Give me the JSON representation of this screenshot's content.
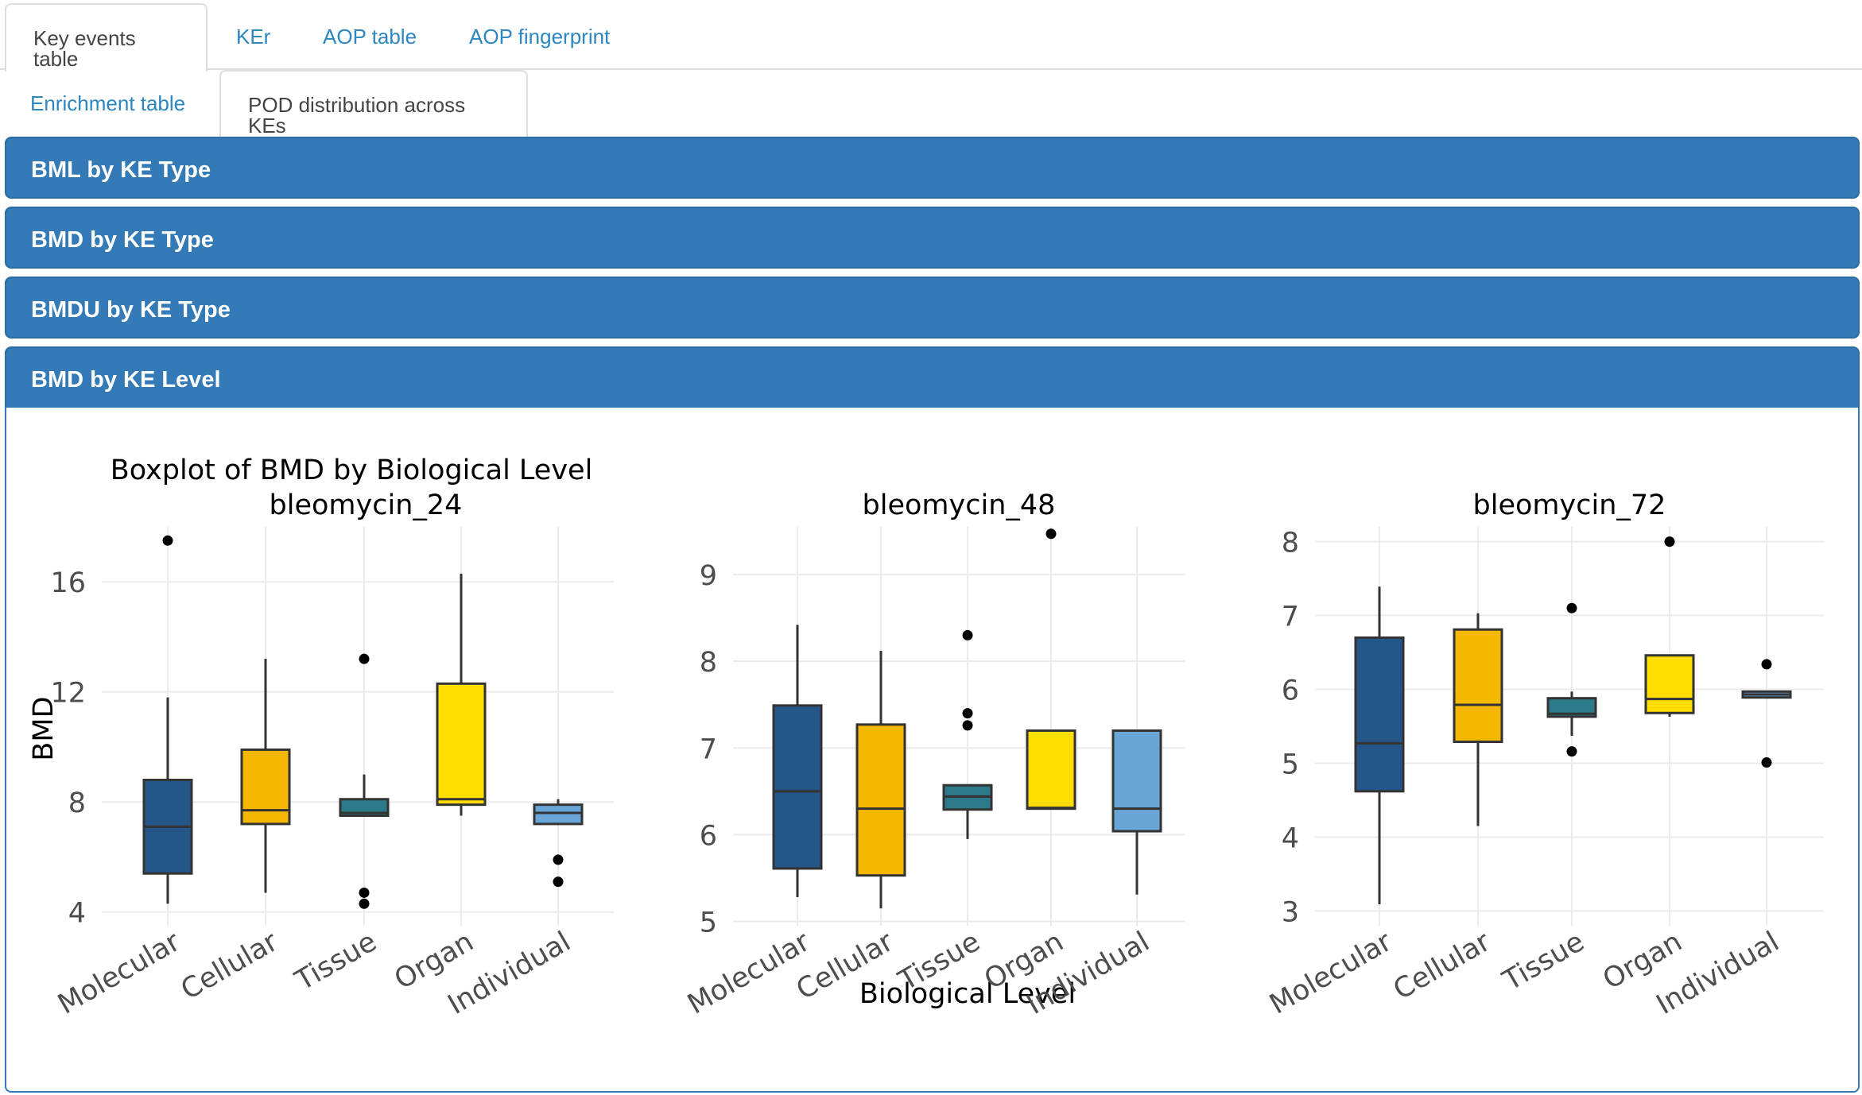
{
  "tabs_row1": [
    {
      "label": "Key events table",
      "active": true
    },
    {
      "label": "KEr",
      "active": false
    },
    {
      "label": "AOP table",
      "active": false
    },
    {
      "label": "AOP fingerprint",
      "active": false
    }
  ],
  "tabs_row2": [
    {
      "label": "Enrichment table",
      "active": false
    },
    {
      "label": "POD distribution across KEs",
      "active": true
    }
  ],
  "panels": [
    {
      "label": "BML by KE Type"
    },
    {
      "label": "BMD by KE Type"
    },
    {
      "label": "BMDU by KE Type"
    },
    {
      "label": "BMD by KE Level"
    }
  ],
  "chart_data": {
    "type": "boxplot",
    "title": "Boxplot of BMD by Biological Level",
    "xlabel": "Biological Level",
    "ylabel": "BMD",
    "categories": [
      "Molecular",
      "Cellular",
      "Tissue",
      "Organ",
      "Individual"
    ],
    "colors": {
      "Molecular": "#245689",
      "Cellular": "#f5b800",
      "Tissue": "#2c7a89",
      "Organ": "#ffdd00",
      "Individual": "#6aa5d8"
    },
    "facets": [
      {
        "name": "bleomycin_24",
        "ylim": [
          3.5,
          18
        ],
        "yticks": [
          4,
          8,
          12,
          16
        ],
        "boxes": [
          {
            "category": "Molecular",
            "lower": 4.3,
            "q1": 5.4,
            "median": 7.1,
            "q3": 8.8,
            "upper": 11.8,
            "outliers": [
              17.5
            ]
          },
          {
            "category": "Cellular",
            "lower": 4.7,
            "q1": 7.2,
            "median": 7.7,
            "q3": 9.9,
            "upper": 13.2,
            "outliers": []
          },
          {
            "category": "Tissue",
            "lower": 7.5,
            "q1": 7.5,
            "median": 7.6,
            "q3": 8.1,
            "upper": 9.0,
            "outliers": [
              13.2,
              4.7,
              4.3
            ]
          },
          {
            "category": "Organ",
            "lower": 7.5,
            "q1": 7.9,
            "median": 8.1,
            "q3": 12.3,
            "upper": 16.3,
            "outliers": []
          },
          {
            "category": "Individual",
            "lower": 7.5,
            "q1": 7.2,
            "median": 7.6,
            "q3": 7.9,
            "upper": 8.1,
            "outliers": [
              5.9,
              5.1
            ]
          }
        ]
      },
      {
        "name": "bleomycin_48",
        "ylim": [
          4.95,
          9.55
        ],
        "yticks": [
          5,
          6,
          7,
          8,
          9
        ],
        "boxes": [
          {
            "category": "Molecular",
            "lower": 5.28,
            "q1": 5.61,
            "median": 6.5,
            "q3": 7.49,
            "upper": 8.42,
            "outliers": []
          },
          {
            "category": "Cellular",
            "lower": 5.15,
            "q1": 5.53,
            "median": 6.3,
            "q3": 7.27,
            "upper": 8.12,
            "outliers": []
          },
          {
            "category": "Tissue",
            "lower": 5.95,
            "q1": 6.29,
            "median": 6.44,
            "q3": 6.57,
            "upper": 6.57,
            "outliers": [
              8.3,
              7.4,
              7.26
            ]
          },
          {
            "category": "Organ",
            "lower": 6.3,
            "q1": 6.3,
            "median": 6.31,
            "q3": 7.2,
            "upper": 7.2,
            "outliers": [
              9.47
            ]
          },
          {
            "category": "Individual",
            "lower": 5.31,
            "q1": 6.04,
            "median": 6.3,
            "q3": 7.2,
            "upper": 7.2,
            "outliers": []
          }
        ]
      },
      {
        "name": "bleomycin_72",
        "ylim": [
          2.8,
          8.2
        ],
        "yticks": [
          3,
          4,
          5,
          6,
          7,
          8
        ],
        "boxes": [
          {
            "category": "Molecular",
            "lower": 3.09,
            "q1": 4.62,
            "median": 5.27,
            "q3": 6.7,
            "upper": 7.39,
            "outliers": []
          },
          {
            "category": "Cellular",
            "lower": 4.15,
            "q1": 5.29,
            "median": 5.79,
            "q3": 6.81,
            "upper": 7.03,
            "outliers": []
          },
          {
            "category": "Tissue",
            "lower": 5.37,
            "q1": 5.63,
            "median": 5.67,
            "q3": 5.88,
            "upper": 5.97,
            "outliers": [
              7.1,
              5.16
            ]
          },
          {
            "category": "Organ",
            "lower": 5.63,
            "q1": 5.68,
            "median": 5.87,
            "q3": 6.46,
            "upper": 6.46,
            "outliers": [
              8.0
            ]
          },
          {
            "category": "Individual",
            "lower": 5.89,
            "q1": 5.89,
            "median": 5.93,
            "q3": 5.97,
            "upper": 5.97,
            "outliers": [
              6.34,
              5.01
            ]
          }
        ]
      }
    ],
    "grid": true
  }
}
